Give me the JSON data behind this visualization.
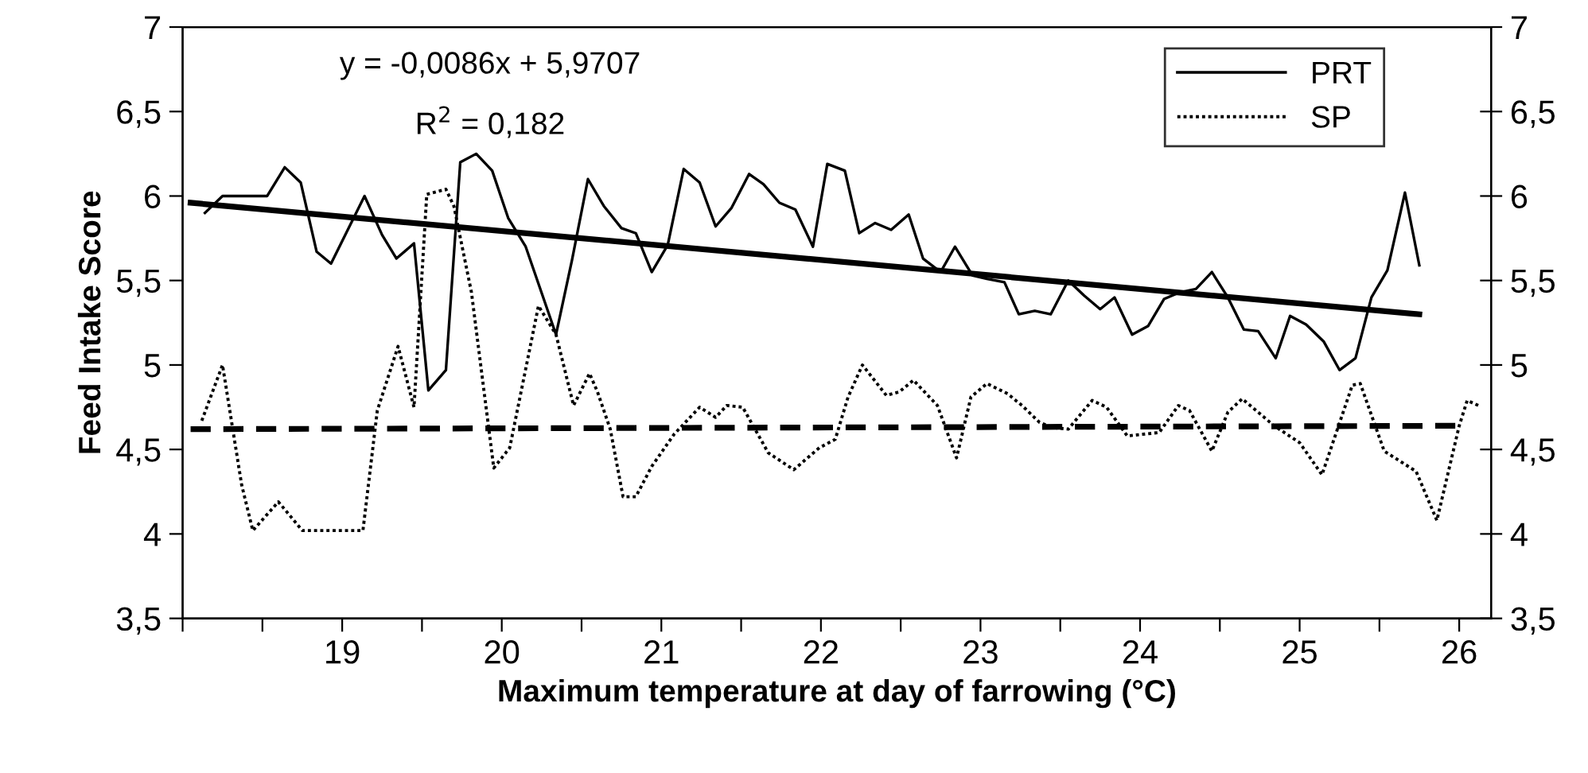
{
  "chart_data": {
    "type": "line",
    "xlabel": "Maximum temperature at day of farrowing (°C)",
    "ylabel": "Feed Intake Score",
    "annotations": [
      "y = -0,0086x + 5,9707",
      "R$^{2}$ = 0,182"
    ],
    "xlim": [
      18,
      26.2
    ],
    "xticks": [
      {
        "value": 18,
        "label": null
      },
      {
        "value": 18.5,
        "label": null
      },
      19,
      {
        "value": 19.5,
        "label": null
      },
      20,
      {
        "value": 20.5,
        "label": null
      },
      21,
      {
        "value": 21.5,
        "label": null
      },
      22,
      {
        "value": 22.5,
        "label": null
      },
      23,
      {
        "value": 23.5,
        "label": null
      },
      24,
      {
        "value": 24.5,
        "label": null
      },
      25,
      {
        "value": 25.5,
        "label": null
      },
      26
    ],
    "ylim": [
      3.5,
      7
    ],
    "yticks": [
      {
        "value": 3.5,
        "label": "3,5"
      },
      4,
      {
        "value": 4.5,
        "label": "4,5"
      },
      5,
      {
        "value": 5.5,
        "label": "5,5"
      },
      6,
      {
        "value": 6.5,
        "label": "6,5"
      },
      7
    ],
    "y2lim": [
      3.5,
      7
    ],
    "y2ticks": [
      {
        "value": 3.5,
        "label": "3,5"
      },
      4,
      {
        "value": 4.5,
        "label": "4,5"
      },
      5,
      {
        "value": 5.5,
        "label": "5,5"
      },
      6,
      {
        "value": 6.5,
        "label": "6,5"
      },
      7
    ],
    "grid": false,
    "legend": "top right",
    "marker": "none",
    "series": [
      {
        "name": "PRT",
        "color": "#000000",
        "line_style": "solid",
        "x": [
          18.14,
          18.25,
          18.53,
          18.64,
          18.74,
          18.84,
          18.93,
          19.14,
          19.25,
          19.34,
          19.45,
          19.54,
          19.65,
          19.74,
          19.84,
          19.94,
          20.04,
          20.15,
          20.34,
          20.44,
          20.54,
          20.64,
          20.75,
          20.84,
          20.94,
          21.04,
          21.14,
          21.24,
          21.34,
          21.44,
          21.55,
          21.64,
          21.74,
          21.84,
          21.95,
          22.04,
          22.15,
          22.24,
          22.34,
          22.44,
          22.55,
          22.64,
          22.75,
          22.84,
          22.95,
          23.04,
          23.15,
          23.24,
          23.34,
          23.44,
          23.55,
          23.65,
          23.75,
          23.84,
          23.95,
          24.05,
          24.15,
          24.25,
          24.35,
          24.45,
          24.55,
          24.65,
          24.74,
          24.85,
          24.94,
          25.04,
          25.15,
          25.25,
          25.35,
          25.45,
          25.55,
          25.66,
          25.75
        ],
        "values": [
          5.9,
          6.0,
          6.0,
          6.17,
          6.08,
          5.67,
          5.6,
          6.0,
          5.77,
          5.63,
          5.72,
          4.85,
          4.97,
          6.2,
          6.25,
          6.15,
          5.87,
          5.7,
          5.18,
          5.62,
          6.1,
          5.94,
          5.81,
          5.78,
          5.55,
          5.71,
          6.16,
          6.08,
          5.82,
          5.93,
          6.13,
          6.07,
          5.96,
          5.92,
          5.7,
          6.19,
          6.15,
          5.78,
          5.84,
          5.8,
          5.89,
          5.63,
          5.55,
          5.7,
          5.53,
          5.51,
          5.49,
          5.3,
          5.32,
          5.3,
          5.5,
          5.41,
          5.33,
          5.4,
          5.18,
          5.23,
          5.39,
          5.43,
          5.45,
          5.55,
          5.4,
          5.21,
          5.2,
          5.04,
          5.29,
          5.24,
          5.14,
          4.97,
          5.04,
          5.4,
          5.56,
          6.02,
          5.59
        ]
      },
      {
        "name": "SP",
        "color": "#000000",
        "line_style": "dotted",
        "x": [
          18.12,
          18.25,
          18.37,
          18.44,
          18.6,
          18.75,
          19.13,
          19.22,
          19.35,
          19.45,
          19.53,
          19.65,
          19.7,
          19.81,
          19.95,
          20.05,
          20.23,
          20.34,
          20.45,
          20.55,
          20.6,
          20.68,
          20.76,
          20.84,
          20.94,
          21.08,
          21.24,
          21.34,
          21.41,
          21.51,
          21.67,
          21.83,
          21.99,
          22.09,
          22.17,
          22.26,
          22.41,
          22.49,
          22.58,
          22.73,
          22.85,
          22.94,
          23.04,
          23.17,
          23.26,
          23.37,
          23.45,
          23.55,
          23.7,
          23.79,
          23.92,
          24.12,
          24.24,
          24.31,
          24.45,
          24.55,
          24.64,
          24.74,
          24.84,
          25.0,
          25.14,
          25.33,
          25.38,
          25.53,
          25.73,
          25.86,
          26.0,
          26.05,
          26.12
        ],
        "values": [
          4.67,
          5.0,
          4.29,
          4.02,
          4.19,
          4.02,
          4.02,
          4.73,
          5.11,
          4.75,
          6.01,
          6.04,
          5.94,
          5.43,
          4.39,
          4.51,
          5.35,
          5.18,
          4.76,
          4.95,
          4.84,
          4.62,
          4.22,
          4.22,
          4.4,
          4.59,
          4.75,
          4.69,
          4.76,
          4.75,
          4.48,
          4.38,
          4.51,
          4.56,
          4.81,
          5.0,
          4.82,
          4.84,
          4.91,
          4.76,
          4.45,
          4.81,
          4.89,
          4.83,
          4.76,
          4.66,
          4.63,
          4.62,
          4.79,
          4.75,
          4.58,
          4.6,
          4.76,
          4.73,
          4.49,
          4.72,
          4.8,
          4.72,
          4.64,
          4.54,
          4.35,
          4.88,
          4.89,
          4.49,
          4.37,
          4.08,
          4.64,
          4.79,
          4.76
        ]
      },
      {
        "type": "line",
        "color": "#000000",
        "line_style": "solid",
        "x": [
          18.05,
          25.75
        ],
        "values": [
          5.96,
          5.3
        ]
      },
      {
        "type": "line",
        "color": "#000000",
        "line_style": "dashed",
        "x": [
          18.05,
          26.0
        ],
        "values": [
          4.62,
          4.64
        ]
      }
    ]
  }
}
